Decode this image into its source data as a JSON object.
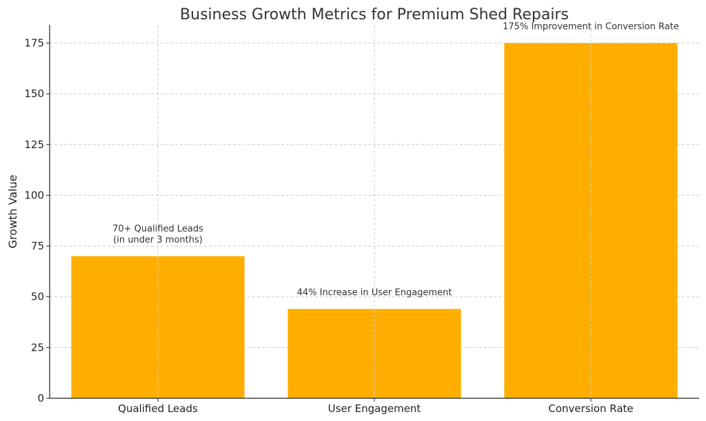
{
  "chart_data": {
    "type": "bar",
    "title": "Business Growth Metrics for Premium Shed Repairs",
    "xlabel": "",
    "ylabel": "Growth Value",
    "categories": [
      "Qualified Leads",
      "User Engagement",
      "Conversion Rate"
    ],
    "values": [
      70,
      44,
      175
    ],
    "ylim": [
      0,
      184
    ],
    "yticks": [
      0,
      25,
      50,
      75,
      100,
      125,
      150,
      175
    ],
    "grid": true,
    "bar_color": "#FFAE00",
    "annotations": [
      [
        "70+ Qualified Leads",
        "(in under 3 months)"
      ],
      [
        "44% Increase in User Engagement"
      ],
      [
        "175% Improvement in Conversion Rate"
      ]
    ]
  }
}
